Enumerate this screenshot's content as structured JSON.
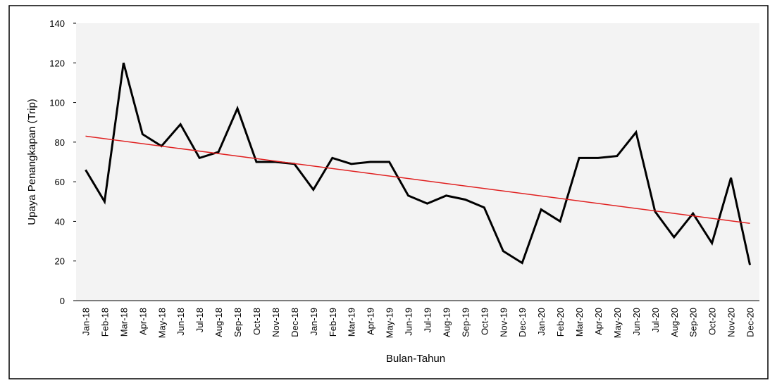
{
  "chart_data": {
    "type": "line",
    "x_label": "Bulan-Tahun",
    "y_label": "Upaya Penangkapan  (Trip)",
    "categories": [
      "Jan-18",
      "Feb-18",
      "Mar-18",
      "Apr-18",
      "May-18",
      "Jun-18",
      "Jul-18",
      "Aug-18",
      "Sep-18",
      "Oct-18",
      "Nov-18",
      "Dec-18",
      "Jan-19",
      "Feb-19",
      "Mar-19",
      "Apr-19",
      "May-19",
      "Jun-19",
      "Jul-19",
      "Aug-19",
      "Sep-19",
      "Oct-19",
      "Nov-19",
      "Dec-19",
      "Jan-20",
      "Feb-20",
      "Mar-20",
      "Apr-20",
      "May-20",
      "Jun-20",
      "Jul-20",
      "Aug-20",
      "Sep-20",
      "Oct-20",
      "Nov-20",
      "Dec-20"
    ],
    "series": [
      {
        "color": "#000000",
        "values": [
          66,
          50,
          120,
          84,
          78,
          89,
          72,
          75,
          97,
          70,
          70,
          69,
          56,
          72,
          69,
          70,
          70,
          53,
          49,
          53,
          51,
          47,
          25,
          19,
          46,
          40,
          72,
          72,
          73,
          85,
          45,
          32,
          44,
          29,
          62,
          18
        ]
      }
    ],
    "trend_line": {
      "color": "#e02020",
      "start": 83,
      "end": 39
    },
    "ylim": [
      0,
      140
    ],
    "yticks": [
      0,
      20,
      40,
      60,
      80,
      100,
      120,
      140
    ]
  }
}
